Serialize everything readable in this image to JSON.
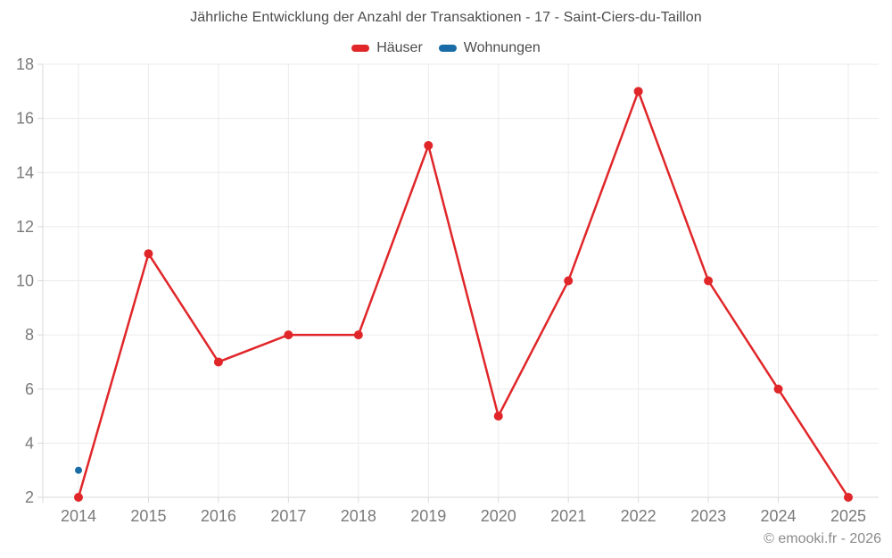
{
  "page": {
    "footer": "© emooki.fr - 2026"
  },
  "chart_data": {
    "type": "line",
    "title": "Jährliche Entwicklung der Anzahl der Transaktionen - 17 - Saint-Ciers-du-Taillon",
    "categories": [
      "2014",
      "2015",
      "2016",
      "2017",
      "2018",
      "2019",
      "2020",
      "2021",
      "2022",
      "2023",
      "2024",
      "2025"
    ],
    "series": [
      {
        "name": "Häuser",
        "color": "#e02629",
        "marker_radius": 5,
        "values": [
          2,
          11,
          7,
          8,
          8,
          15,
          5,
          10,
          17,
          10,
          6,
          2
        ]
      },
      {
        "name": "Wohnungen",
        "color": "#1a6ca6",
        "marker_radius": 4,
        "values": [
          3,
          null,
          null,
          null,
          null,
          null,
          null,
          null,
          null,
          null,
          null,
          null
        ]
      }
    ],
    "xlabel": "",
    "ylabel": "",
    "ylim": [
      2,
      18
    ],
    "yticks": [
      2,
      4,
      6,
      8,
      10,
      12,
      14,
      16,
      18
    ],
    "grid": true,
    "legend_position": "top",
    "axis_text_color": "#7a7a7a",
    "grid_color": "#ebebeb",
    "axis_line_color": "#d9d9d9"
  }
}
